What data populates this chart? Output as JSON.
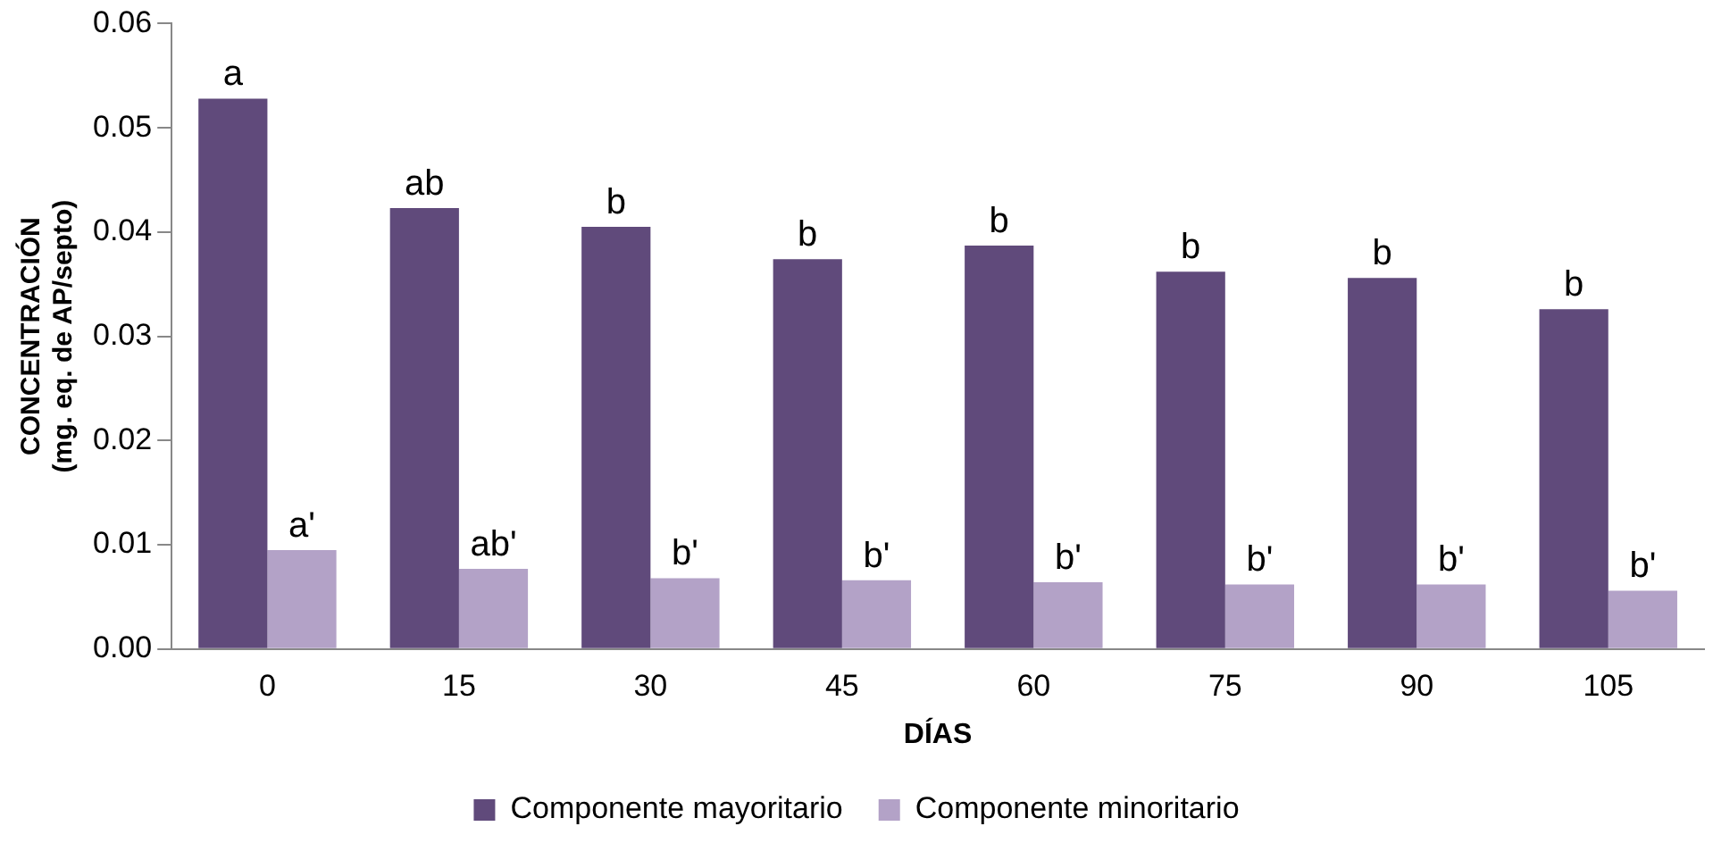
{
  "chart_data": {
    "type": "bar",
    "xlabel": "DÍAS",
    "ylabel": "CONCENTRACIÓN\n(mg. eq. de AP/septo)",
    "categories": [
      "0",
      "15",
      "30",
      "45",
      "60",
      "75",
      "90",
      "105"
    ],
    "series": [
      {
        "name": "Componente mayoritario",
        "color": "#604a7b",
        "values": [
          0.0528,
          0.0423,
          0.0405,
          0.0374,
          0.0387,
          0.0362,
          0.0356,
          0.0326
        ]
      },
      {
        "name": "Componente minoritario",
        "color": "#b3a2c7",
        "values": [
          0.0095,
          0.0077,
          0.0068,
          0.0066,
          0.0064,
          0.0062,
          0.0062,
          0.0056
        ]
      }
    ],
    "ylim": [
      0,
      0.06
    ],
    "yticks": [
      {
        "value": 0,
        "label": "0.00"
      },
      {
        "value": 0.01,
        "label": "0.01"
      },
      {
        "value": 0.02,
        "label": "0.02"
      },
      {
        "value": 0.03,
        "label": "0.03"
      },
      {
        "value": 0.04,
        "label": "0.04"
      },
      {
        "value": 0.05,
        "label": "0.05"
      },
      {
        "value": 0.06,
        "label": "0.06"
      }
    ],
    "grid": false,
    "legend": "bottom",
    "annotations": [
      {
        "text": "a",
        "x": "0",
        "y": 0.0528
      },
      {
        "text": "ab",
        "x": "15",
        "y": 0.0423
      },
      {
        "text": "b",
        "x": "30",
        "y": 0.0405
      },
      {
        "text": "b",
        "x": "45",
        "y": 0.0374
      },
      {
        "text": "b",
        "x": "60",
        "y": 0.0387
      },
      {
        "text": "b",
        "x": "75",
        "y": 0.0362
      },
      {
        "text": "b",
        "x": "90",
        "y": 0.0356
      },
      {
        "text": "b",
        "x": "105",
        "y": 0.0326
      },
      {
        "text": "a'",
        "x": "0",
        "y": 0.0095
      },
      {
        "text": "ab'",
        "x": "15",
        "y": 0.0077
      },
      {
        "text": "b'",
        "x": "30",
        "y": 0.0068
      },
      {
        "text": "b'",
        "x": "45",
        "y": 0.0066
      },
      {
        "text": "b'",
        "x": "60",
        "y": 0.0064
      },
      {
        "text": "b'",
        "x": "75",
        "y": 0.0062
      },
      {
        "text": "b'",
        "x": "90",
        "y": 0.0062
      },
      {
        "text": "b'",
        "x": "105",
        "y": 0.0056
      }
    ]
  }
}
